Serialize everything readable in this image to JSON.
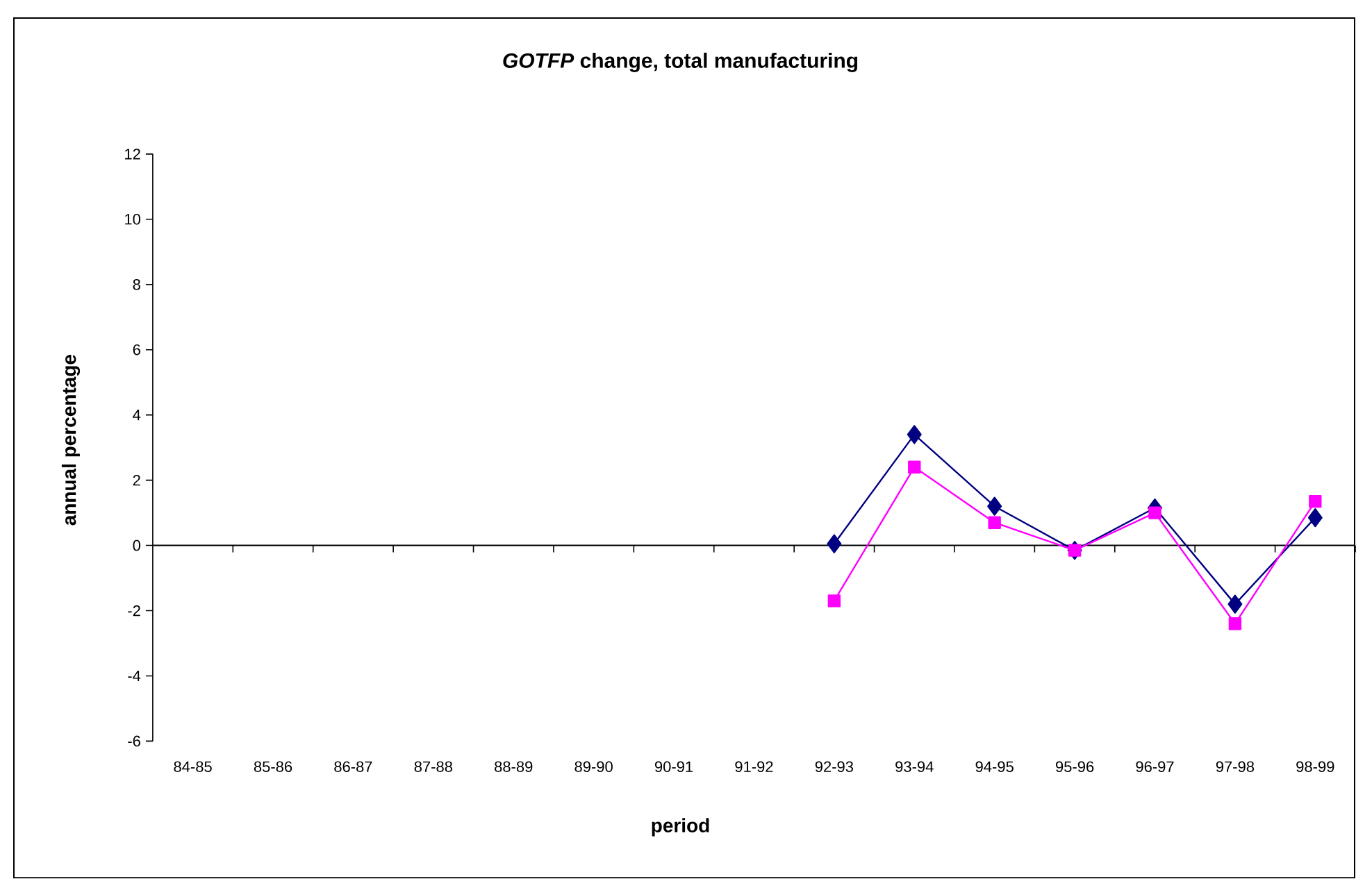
{
  "chart_data": {
    "type": "line",
    "title": "*GOTFP* change, total manufacturing",
    "xlabel": "period",
    "ylabel": "annual percentage",
    "categories": [
      "84-85",
      "85-86",
      "86-87",
      "87-88",
      "88-89",
      "89-90",
      "90-91",
      "91-92",
      "92-93",
      "93-94",
      "94-95",
      "95-96",
      "96-97",
      "97-98",
      "98-99"
    ],
    "ylim": [
      -6,
      12
    ],
    "yticks": [
      -6,
      -4,
      -2,
      0,
      2,
      4,
      6,
      8,
      10,
      12
    ],
    "series": [
      {
        "color": "#000080",
        "marker": "diamond",
        "values": [
          null,
          null,
          null,
          null,
          null,
          null,
          null,
          null,
          0.05,
          3.4,
          1.2,
          -0.15,
          1.15,
          -1.8,
          0.85
        ]
      },
      {
        "color": "#ff00ff",
        "marker": "square",
        "values": [
          null,
          null,
          null,
          null,
          null,
          null,
          null,
          null,
          -1.7,
          2.4,
          0.7,
          -0.15,
          1.0,
          -2.4,
          1.35
        ]
      }
    ]
  }
}
